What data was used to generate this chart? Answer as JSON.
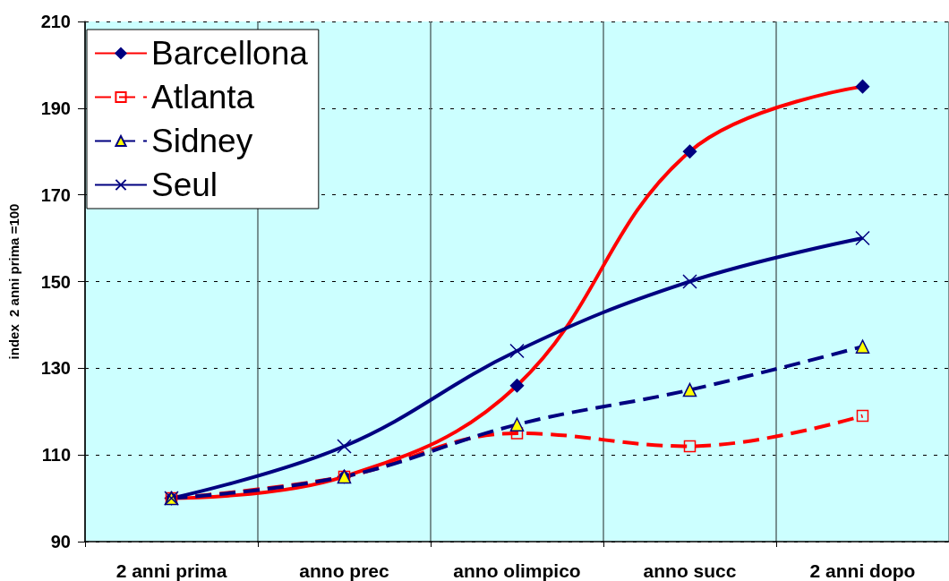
{
  "chart_data": {
    "type": "line",
    "ylabel": "index  2 anni prima =100",
    "categories": [
      "2 anni prima",
      "anno prec",
      "anno olimpico",
      "anno succ",
      "2 anni dopo"
    ],
    "series": [
      {
        "name": "Barcellona",
        "color": "#ff0000",
        "colors": [
          "#000080",
          "#000080",
          "#000080",
          "#000080",
          "#000080"
        ],
        "marker": "diamond",
        "line_style": "solid",
        "values": [
          100,
          105,
          126,
          180,
          195
        ]
      },
      {
        "name": "Atlanta",
        "color": "#ff0000",
        "marker": "square",
        "line_style": "dashed",
        "values": [
          100,
          105,
          115,
          112,
          119
        ]
      },
      {
        "name": "Sidney",
        "color": "#000080",
        "colors": [
          "#ffff00",
          "#ffff00",
          "#ffff00",
          "#ffff00",
          "#ffff00"
        ],
        "marker": "triangle",
        "line_style": "dashed",
        "values": [
          100,
          105,
          117,
          125,
          135
        ]
      },
      {
        "name": "Seul",
        "color": "#000080",
        "marker": "cross",
        "line_style": "solid",
        "values": [
          100,
          112,
          134,
          150,
          160
        ]
      }
    ],
    "ylim": [
      90,
      210
    ],
    "yticks": [
      90,
      110,
      130,
      150,
      170,
      190,
      210
    ],
    "grid": true,
    "legend": "top left"
  }
}
